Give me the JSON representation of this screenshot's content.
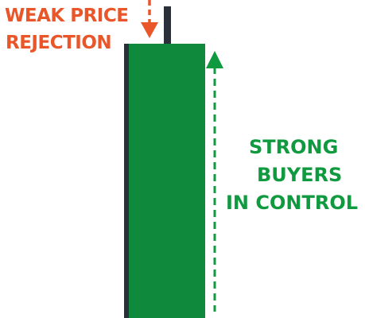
{
  "labels": {
    "rejection_line1": "WEAK PRICE",
    "rejection_line2": "REJECTION",
    "buyers_line1": "STRONG",
    "buyers_line2": "BUYERS",
    "buyers_line3": "IN CONTROL"
  },
  "icons": {
    "rejection_arrow": "down-arrow-icon",
    "buyers_arrow": "up-arrow-icon"
  },
  "colors": {
    "candle_body": "#0f8a3c",
    "wick": "#2b2f3a",
    "rejection": "#e8562a",
    "buyers": "#109a3f"
  }
}
